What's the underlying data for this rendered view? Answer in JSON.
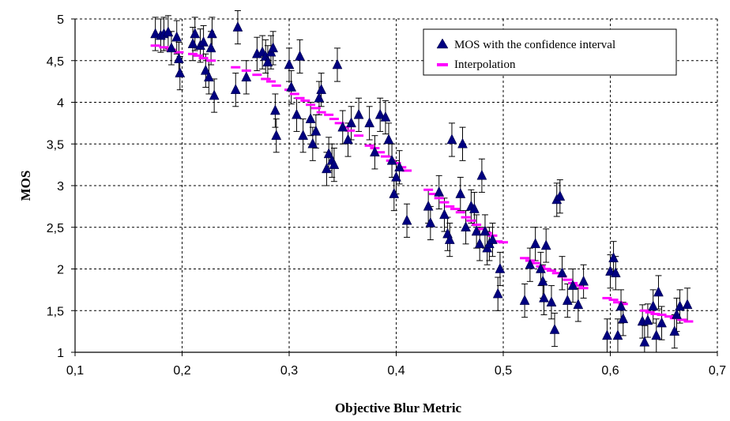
{
  "chart_data": {
    "type": "scatter",
    "xlabel": "Objective Blur Metric",
    "ylabel": "MOS",
    "xlim": [
      0.1,
      0.7
    ],
    "ylim": [
      1,
      5
    ],
    "x_ticks": [
      "0,1",
      "0,2",
      "0,3",
      "0,4",
      "0,5",
      "0,6",
      "0,7"
    ],
    "y_ticks": [
      "1",
      "1,5",
      "2",
      "2,5",
      "3",
      "3,5",
      "4",
      "4,5",
      "5"
    ],
    "grid": true,
    "legend_position": "top-right",
    "colors": {
      "mos": "#000080",
      "interpolation": "#ff00ff",
      "error_bar": "#000000"
    },
    "series": [
      {
        "name": "MOS with the confidence interval",
        "marker": "triangle",
        "ci": 0.2,
        "points": [
          [
            0.175,
            4.82
          ],
          [
            0.18,
            4.8
          ],
          [
            0.183,
            4.82
          ],
          [
            0.187,
            4.84
          ],
          [
            0.19,
            4.65
          ],
          [
            0.195,
            4.78
          ],
          [
            0.197,
            4.52
          ],
          [
            0.198,
            4.35
          ],
          [
            0.21,
            4.7
          ],
          [
            0.212,
            4.82
          ],
          [
            0.217,
            4.68
          ],
          [
            0.22,
            4.72
          ],
          [
            0.222,
            4.38
          ],
          [
            0.225,
            4.3
          ],
          [
            0.227,
            4.65
          ],
          [
            0.228,
            4.82
          ],
          [
            0.23,
            4.08
          ],
          [
            0.25,
            4.15
          ],
          [
            0.252,
            4.9
          ],
          [
            0.26,
            4.3
          ],
          [
            0.27,
            4.58
          ],
          [
            0.275,
            4.6
          ],
          [
            0.278,
            4.55
          ],
          [
            0.28,
            4.48
          ],
          [
            0.283,
            4.6
          ],
          [
            0.285,
            4.65
          ],
          [
            0.287,
            3.9
          ],
          [
            0.288,
            3.6
          ],
          [
            0.3,
            4.45
          ],
          [
            0.302,
            4.18
          ],
          [
            0.307,
            3.85
          ],
          [
            0.31,
            4.55
          ],
          [
            0.313,
            3.6
          ],
          [
            0.32,
            3.8
          ],
          [
            0.322,
            3.5
          ],
          [
            0.325,
            3.65
          ],
          [
            0.328,
            4.05
          ],
          [
            0.33,
            4.15
          ],
          [
            0.335,
            3.2
          ],
          [
            0.337,
            3.38
          ],
          [
            0.34,
            3.3
          ],
          [
            0.342,
            3.25
          ],
          [
            0.345,
            4.45
          ],
          [
            0.35,
            3.7
          ],
          [
            0.355,
            3.55
          ],
          [
            0.358,
            3.75
          ],
          [
            0.365,
            3.85
          ],
          [
            0.375,
            3.75
          ],
          [
            0.38,
            3.4
          ],
          [
            0.385,
            3.85
          ],
          [
            0.39,
            3.82
          ],
          [
            0.393,
            3.55
          ],
          [
            0.396,
            3.3
          ],
          [
            0.398,
            2.9
          ],
          [
            0.4,
            3.1
          ],
          [
            0.403,
            3.22
          ],
          [
            0.41,
            2.58
          ],
          [
            0.43,
            2.75
          ],
          [
            0.432,
            2.55
          ],
          [
            0.44,
            2.92
          ],
          [
            0.445,
            2.65
          ],
          [
            0.448,
            2.42
          ],
          [
            0.45,
            2.35
          ],
          [
            0.452,
            3.55
          ],
          [
            0.46,
            2.9
          ],
          [
            0.462,
            3.5
          ],
          [
            0.465,
            2.5
          ],
          [
            0.47,
            2.75
          ],
          [
            0.473,
            2.72
          ],
          [
            0.475,
            2.45
          ],
          [
            0.478,
            2.3
          ],
          [
            0.48,
            3.12
          ],
          [
            0.483,
            2.45
          ],
          [
            0.485,
            2.25
          ],
          [
            0.487,
            2.3
          ],
          [
            0.49,
            2.35
          ],
          [
            0.495,
            1.7
          ],
          [
            0.497,
            2.0
          ],
          [
            0.52,
            1.62
          ],
          [
            0.525,
            2.05
          ],
          [
            0.53,
            2.3
          ],
          [
            0.535,
            2.0
          ],
          [
            0.537,
            1.85
          ],
          [
            0.538,
            1.65
          ],
          [
            0.54,
            2.28
          ],
          [
            0.545,
            1.6
          ],
          [
            0.548,
            1.27
          ],
          [
            0.55,
            2.83
          ],
          [
            0.553,
            2.87
          ],
          [
            0.555,
            1.95
          ],
          [
            0.56,
            1.62
          ],
          [
            0.565,
            1.8
          ],
          [
            0.57,
            1.57
          ],
          [
            0.575,
            1.85
          ],
          [
            0.597,
            1.2
          ],
          [
            0.6,
            1.97
          ],
          [
            0.603,
            2.13
          ],
          [
            0.605,
            1.95
          ],
          [
            0.607,
            1.2
          ],
          [
            0.61,
            1.55
          ],
          [
            0.612,
            1.4
          ],
          [
            0.63,
            1.37
          ],
          [
            0.632,
            1.12
          ],
          [
            0.635,
            1.38
          ],
          [
            0.64,
            1.55
          ],
          [
            0.643,
            1.2
          ],
          [
            0.645,
            1.72
          ],
          [
            0.648,
            1.35
          ],
          [
            0.66,
            1.25
          ],
          [
            0.662,
            1.45
          ],
          [
            0.665,
            1.55
          ],
          [
            0.672,
            1.57
          ]
        ]
      },
      {
        "name": "Interpolation",
        "marker": "dash",
        "points": [
          [
            0.175,
            4.68
          ],
          [
            0.183,
            4.66
          ],
          [
            0.19,
            4.63
          ],
          [
            0.197,
            4.6
          ],
          [
            0.21,
            4.58
          ],
          [
            0.215,
            4.56
          ],
          [
            0.22,
            4.53
          ],
          [
            0.227,
            4.5
          ],
          [
            0.25,
            4.42
          ],
          [
            0.26,
            4.38
          ],
          [
            0.27,
            4.33
          ],
          [
            0.278,
            4.28
          ],
          [
            0.283,
            4.25
          ],
          [
            0.288,
            4.2
          ],
          [
            0.3,
            4.15
          ],
          [
            0.305,
            4.1
          ],
          [
            0.31,
            4.05
          ],
          [
            0.315,
            4.02
          ],
          [
            0.32,
            3.97
          ],
          [
            0.325,
            3.93
          ],
          [
            0.33,
            3.88
          ],
          [
            0.337,
            3.85
          ],
          [
            0.342,
            3.8
          ],
          [
            0.347,
            3.75
          ],
          [
            0.352,
            3.7
          ],
          [
            0.357,
            3.66
          ],
          [
            0.365,
            3.6
          ],
          [
            0.375,
            3.48
          ],
          [
            0.38,
            3.45
          ],
          [
            0.385,
            3.4
          ],
          [
            0.39,
            3.35
          ],
          [
            0.395,
            3.3
          ],
          [
            0.4,
            3.27
          ],
          [
            0.405,
            3.22
          ],
          [
            0.41,
            3.18
          ],
          [
            0.43,
            2.95
          ],
          [
            0.435,
            2.9
          ],
          [
            0.44,
            2.85
          ],
          [
            0.445,
            2.8
          ],
          [
            0.45,
            2.75
          ],
          [
            0.455,
            2.72
          ],
          [
            0.46,
            2.68
          ],
          [
            0.465,
            2.62
          ],
          [
            0.47,
            2.58
          ],
          [
            0.475,
            2.53
          ],
          [
            0.48,
            2.48
          ],
          [
            0.485,
            2.43
          ],
          [
            0.49,
            2.4
          ],
          [
            0.495,
            2.33
          ],
          [
            0.5,
            2.32
          ],
          [
            0.52,
            2.13
          ],
          [
            0.525,
            2.1
          ],
          [
            0.53,
            2.07
          ],
          [
            0.535,
            2.03
          ],
          [
            0.54,
            2.0
          ],
          [
            0.545,
            1.98
          ],
          [
            0.55,
            1.95
          ],
          [
            0.555,
            1.91
          ],
          [
            0.56,
            1.87
          ],
          [
            0.565,
            1.83
          ],
          [
            0.57,
            1.8
          ],
          [
            0.575,
            1.77
          ],
          [
            0.597,
            1.65
          ],
          [
            0.603,
            1.63
          ],
          [
            0.607,
            1.6
          ],
          [
            0.612,
            1.58
          ],
          [
            0.632,
            1.5
          ],
          [
            0.637,
            1.48
          ],
          [
            0.642,
            1.46
          ],
          [
            0.648,
            1.45
          ],
          [
            0.655,
            1.43
          ],
          [
            0.66,
            1.41
          ],
          [
            0.667,
            1.39
          ],
          [
            0.673,
            1.37
          ]
        ]
      }
    ]
  }
}
